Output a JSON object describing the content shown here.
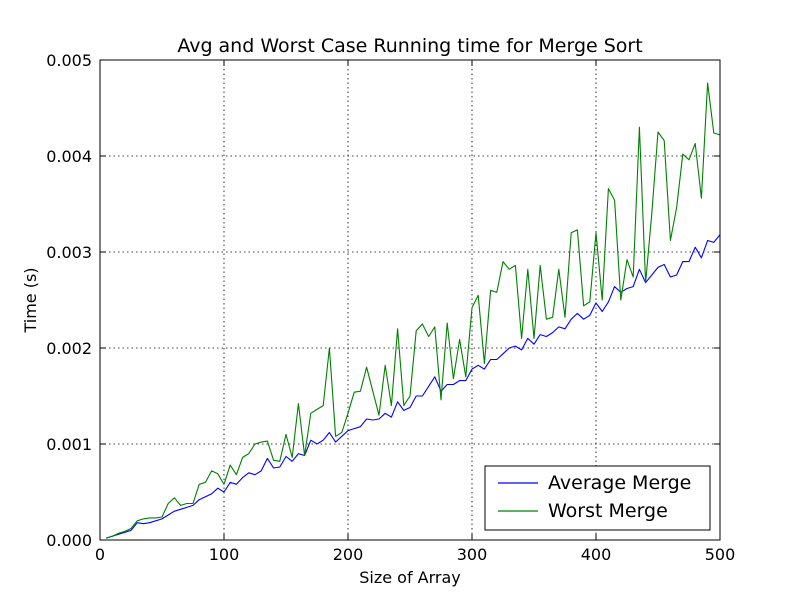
{
  "chart_data": {
    "type": "line",
    "title": "Avg and Worst Case Running time for Merge Sort",
    "xlabel": "Size of Array",
    "ylabel": "Time (s)",
    "xlim": [
      0,
      500
    ],
    "ylim": [
      0,
      0.005
    ],
    "xticks": [
      "0",
      "100",
      "200",
      "300",
      "400",
      "500"
    ],
    "yticks": [
      "0.000",
      "0.001",
      "0.002",
      "0.003",
      "0.004",
      "0.005"
    ],
    "grid": true,
    "legend_position": "lower-right",
    "x": [
      5,
      10,
      15,
      20,
      25,
      30,
      35,
      40,
      45,
      50,
      55,
      60,
      65,
      70,
      75,
      80,
      85,
      90,
      95,
      100,
      105,
      110,
      115,
      120,
      125,
      130,
      135,
      140,
      145,
      150,
      155,
      160,
      165,
      170,
      175,
      180,
      185,
      190,
      195,
      200,
      205,
      210,
      215,
      220,
      225,
      230,
      235,
      240,
      245,
      250,
      255,
      260,
      265,
      270,
      275,
      280,
      285,
      290,
      295,
      300,
      305,
      310,
      315,
      320,
      325,
      330,
      335,
      340,
      345,
      350,
      355,
      360,
      365,
      370,
      375,
      380,
      385,
      390,
      395,
      400,
      405,
      410,
      415,
      420,
      425,
      430,
      435,
      440,
      445,
      450,
      455,
      460,
      465,
      470,
      475,
      480,
      485,
      490,
      495,
      500
    ],
    "series": [
      {
        "name": "Average Merge",
        "color": "#0000ff",
        "values": [
          2e-05,
          4e-05,
          6e-05,
          8e-05,
          0.0001,
          0.00018,
          0.00017,
          0.00018,
          0.0002,
          0.00022,
          0.00026,
          0.0003,
          0.00032,
          0.00034,
          0.00036,
          0.00042,
          0.00045,
          0.00048,
          0.00054,
          0.0005,
          0.0006,
          0.00058,
          0.00065,
          0.0007,
          0.00068,
          0.00072,
          0.00085,
          0.00075,
          0.00076,
          0.00087,
          0.00082,
          0.0009,
          0.00088,
          0.00104,
          0.001,
          0.00104,
          0.00112,
          0.00102,
          0.00108,
          0.00114,
          0.00116,
          0.00118,
          0.00126,
          0.00125,
          0.00126,
          0.00132,
          0.00128,
          0.00144,
          0.00135,
          0.00138,
          0.0015,
          0.0015,
          0.0016,
          0.0017,
          0.00155,
          0.00162,
          0.00162,
          0.00166,
          0.00166,
          0.00178,
          0.00182,
          0.00178,
          0.00188,
          0.00188,
          0.00194,
          0.002,
          0.00202,
          0.00198,
          0.0021,
          0.00204,
          0.00214,
          0.00212,
          0.00216,
          0.00222,
          0.0022,
          0.0023,
          0.00236,
          0.0023,
          0.00234,
          0.00247,
          0.00238,
          0.00248,
          0.00264,
          0.00258,
          0.00262,
          0.00264,
          0.00282,
          0.00268,
          0.00276,
          0.00284,
          0.00287,
          0.00274,
          0.00276,
          0.0029,
          0.0029,
          0.00305,
          0.00294,
          0.00312,
          0.0031,
          0.00318
        ]
      },
      {
        "name": "Worst Merge",
        "color": "#008000",
        "values": [
          2e-05,
          4e-05,
          7e-05,
          9e-05,
          0.00012,
          0.0002,
          0.00022,
          0.00023,
          0.00023,
          0.00024,
          0.00038,
          0.00044,
          0.00036,
          0.00038,
          0.00038,
          0.00058,
          0.0006,
          0.00072,
          0.00069,
          0.00058,
          0.00078,
          0.00068,
          0.00086,
          0.0009,
          0.001,
          0.00102,
          0.00103,
          0.00083,
          0.00082,
          0.0011,
          0.00086,
          0.00142,
          0.00088,
          0.00132,
          0.00136,
          0.0014,
          0.002,
          0.00108,
          0.00112,
          0.00132,
          0.00154,
          0.00155,
          0.0018,
          0.00155,
          0.0013,
          0.00182,
          0.0014,
          0.0022,
          0.0014,
          0.0015,
          0.00218,
          0.00225,
          0.00212,
          0.00222,
          0.00146,
          0.00226,
          0.00168,
          0.00209,
          0.0017,
          0.00242,
          0.00255,
          0.00184,
          0.0026,
          0.00258,
          0.0029,
          0.00282,
          0.00286,
          0.0021,
          0.00282,
          0.0021,
          0.00286,
          0.0023,
          0.00232,
          0.00282,
          0.00232,
          0.0032,
          0.00323,
          0.00244,
          0.00248,
          0.0032,
          0.0025,
          0.00366,
          0.00354,
          0.0025,
          0.00292,
          0.00274,
          0.0043,
          0.00268,
          0.0034,
          0.00425,
          0.00416,
          0.00312,
          0.00346,
          0.00402,
          0.00396,
          0.00413,
          0.00356,
          0.00476,
          0.00424,
          0.00422
        ]
      }
    ]
  }
}
